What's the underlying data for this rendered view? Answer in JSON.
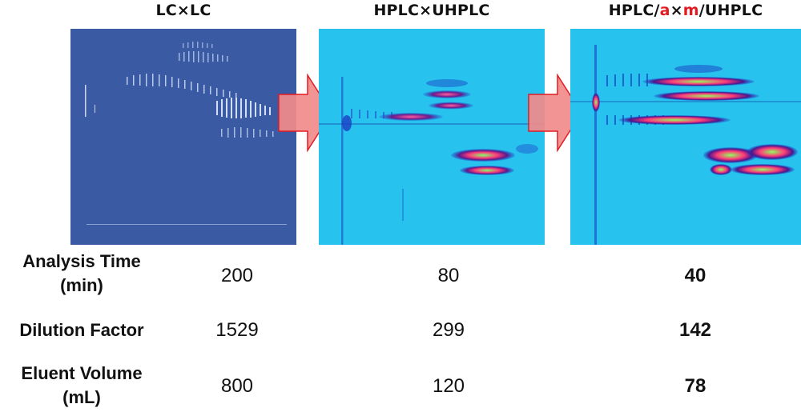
{
  "columns": [
    {
      "title": "LC×LC"
    },
    {
      "title": "HPLC×UHPLC"
    },
    {
      "title_parts": [
        "HPLC/",
        "a",
        "×",
        "m",
        "/UHPLC"
      ]
    }
  ],
  "rows": [
    {
      "label_line1": "Analysis Time",
      "label_line2": "(min)",
      "values": [
        "200",
        "80",
        "40"
      ]
    },
    {
      "label_line1": "Dilution Factor",
      "label_line2": "",
      "values": [
        "1529",
        "299",
        "142"
      ]
    },
    {
      "label_line1": "Eluent Volume",
      "label_line2": "(mL)",
      "values": [
        "800",
        "120",
        "78"
      ]
    }
  ],
  "colors": {
    "plot1_bg": "#3a5aa3",
    "plot2_bg": "#27c3ee",
    "plot3_bg": "#27c3ee",
    "arrow_fill": "#f28b8b",
    "arrow_stroke": "#e11b22",
    "accent_red": "#e11b22"
  }
}
